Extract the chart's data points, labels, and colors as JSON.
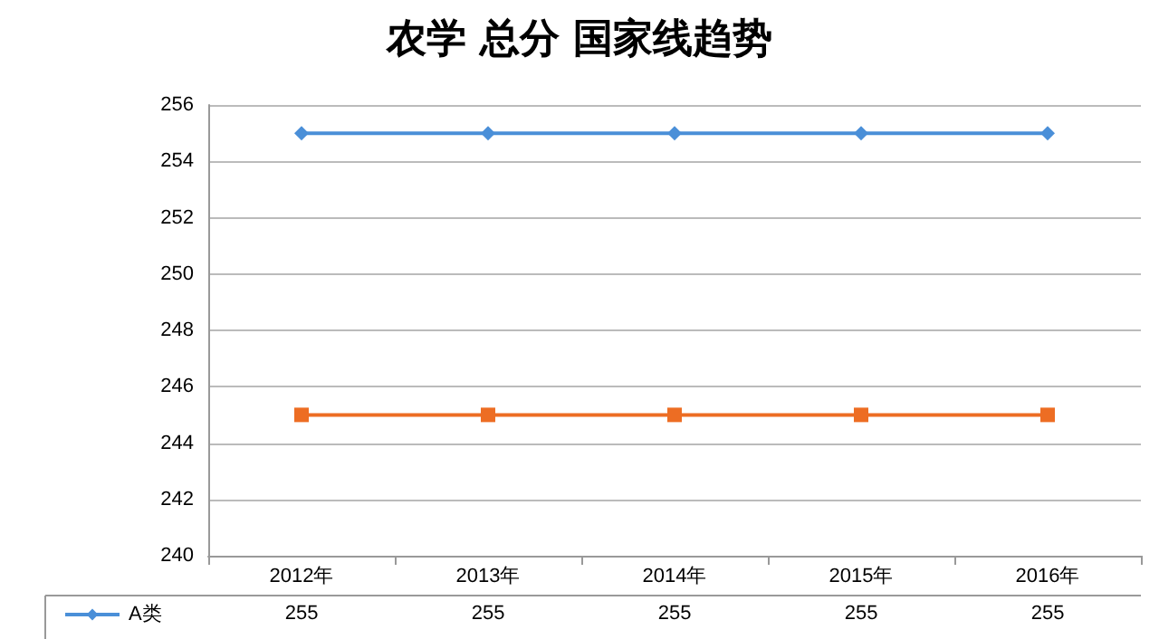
{
  "chart_data": {
    "type": "line",
    "title": "农学 总分 国家线趋势",
    "categories": [
      "2012年",
      "2013年",
      "2014年",
      "2015年",
      "2016年"
    ],
    "series": [
      {
        "name": "A类",
        "color": "#4a8fd8",
        "values": [
          255,
          255,
          255,
          255,
          255
        ],
        "marker": "diamond",
        "value_labels": [
          "255",
          "255",
          "255",
          "255",
          "255"
        ]
      },
      {
        "color": "#ed6d23",
        "values": [
          245,
          245,
          245,
          245,
          245
        ],
        "marker": "square"
      }
    ],
    "ylim": [
      240,
      256
    ],
    "yticks": [
      240,
      242,
      244,
      246,
      248,
      250,
      252,
      254,
      256
    ],
    "grid": "y",
    "legend": "bottom left"
  }
}
